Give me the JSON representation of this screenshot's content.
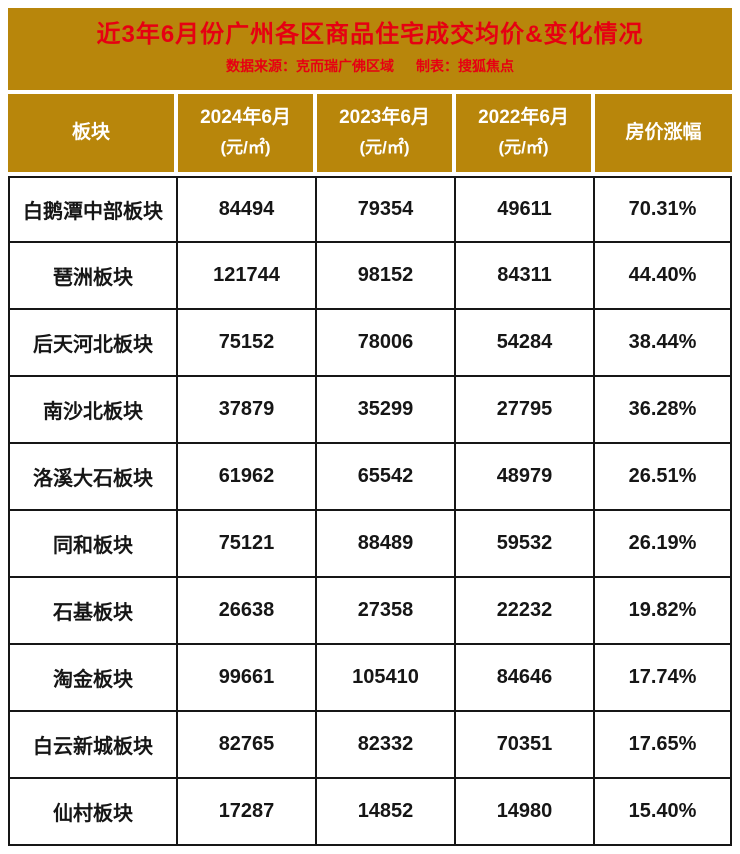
{
  "banner": {
    "title": "近3年6月份广州各区商品住宅成交均价&变化情况",
    "source": "数据来源：克而瑞广佛区域",
    "credit": "制表：搜狐焦点"
  },
  "columns": [
    {
      "label": "板块",
      "sub": ""
    },
    {
      "label": "2024年6月",
      "sub": "(元/㎡)"
    },
    {
      "label": "2023年6月",
      "sub": "(元/㎡)"
    },
    {
      "label": "2022年6月",
      "sub": "(元/㎡)"
    },
    {
      "label": "房价涨幅",
      "sub": ""
    }
  ],
  "table_rows": [
    [
      "白鹅潭中部板块",
      "84494",
      "79354",
      "49611",
      "70.31%"
    ],
    [
      "琶洲板块",
      "121744",
      "98152",
      "84311",
      "44.40%"
    ],
    [
      "后天河北板块",
      "75152",
      "78006",
      "54284",
      "38.44%"
    ],
    [
      "南沙北板块",
      "37879",
      "35299",
      "27795",
      "36.28%"
    ],
    [
      "洛溪大石板块",
      "61962",
      "65542",
      "48979",
      "26.51%"
    ],
    [
      "同和板块",
      "75121",
      "88489",
      "59532",
      "26.19%"
    ],
    [
      "石基板块",
      "26638",
      "27358",
      "22232",
      "19.82%"
    ],
    [
      "淘金板块",
      "99661",
      "105410",
      "84646",
      "17.74%"
    ],
    [
      "白云新城板块",
      "82765",
      "82332",
      "70351",
      "17.65%"
    ],
    [
      "仙村板块",
      "17287",
      "14852",
      "14980",
      "15.40%"
    ]
  ],
  "colors": {
    "gold": "#B8860B",
    "title_red": "#E60012",
    "border_black": "#161616",
    "header_text": "#FFFFFF",
    "cell_background": "#FFFFFF"
  },
  "chart_data": {
    "type": "table",
    "title": "近3年6月份广州各区商品住宅成交均价&变化情况",
    "source": "数据来源：克而瑞广佛区域",
    "credit": "制表：搜狐焦点",
    "unit": "元/㎡",
    "columns": [
      "板块",
      "2024年6月(元/㎡)",
      "2023年6月(元/㎡)",
      "2022年6月(元/㎡)",
      "房价涨幅"
    ],
    "rows": [
      {
        "district": "白鹅潭中部板块",
        "price_2024_06": 84494,
        "price_2023_06": 79354,
        "price_2022_06": 49611,
        "growth": "70.31%"
      },
      {
        "district": "琶洲板块",
        "price_2024_06": 121744,
        "price_2023_06": 98152,
        "price_2022_06": 84311,
        "growth": "44.40%"
      },
      {
        "district": "后天河北板块",
        "price_2024_06": 75152,
        "price_2023_06": 78006,
        "price_2022_06": 54284,
        "growth": "38.44%"
      },
      {
        "district": "南沙北板块",
        "price_2024_06": 37879,
        "price_2023_06": 35299,
        "price_2022_06": 27795,
        "growth": "36.28%"
      },
      {
        "district": "洛溪大石板块",
        "price_2024_06": 61962,
        "price_2023_06": 65542,
        "price_2022_06": 48979,
        "growth": "26.51%"
      },
      {
        "district": "同和板块",
        "price_2024_06": 75121,
        "price_2023_06": 88489,
        "price_2022_06": 59532,
        "growth": "26.19%"
      },
      {
        "district": "石基板块",
        "price_2024_06": 26638,
        "price_2023_06": 27358,
        "price_2022_06": 22232,
        "growth": "19.82%"
      },
      {
        "district": "淘金板块",
        "price_2024_06": 99661,
        "price_2023_06": 105410,
        "price_2022_06": 84646,
        "growth": "17.74%"
      },
      {
        "district": "白云新城板块",
        "price_2024_06": 82765,
        "price_2023_06": 82332,
        "price_2022_06": 70351,
        "growth": "17.65%"
      },
      {
        "district": "仙村板块",
        "price_2024_06": 17287,
        "price_2023_06": 14852,
        "price_2022_06": 14980,
        "growth": "15.40%"
      }
    ]
  }
}
